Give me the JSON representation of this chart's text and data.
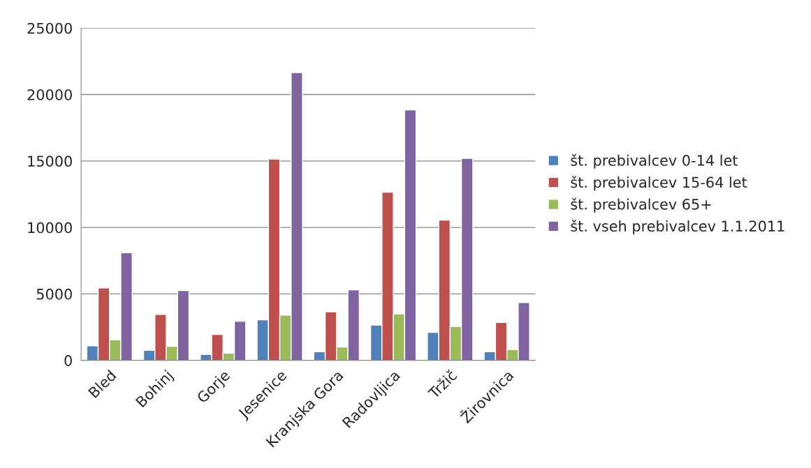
{
  "chart_data": {
    "type": "bar",
    "categories": [
      "Bled",
      "Bohinj",
      "Gorje",
      "Jesenice",
      "Kranjska Gora",
      "Radovljica",
      "Tržič",
      "Žirovnica"
    ],
    "series": [
      {
        "name": "št. prebivalcev 0-14 let",
        "color": "#4f81bd",
        "values": [
          1100,
          750,
          450,
          3050,
          650,
          2650,
          2100,
          650
        ]
      },
      {
        "name": "št. prebivalcev 15-64 let",
        "color": "#c0504d",
        "values": [
          5450,
          3450,
          1950,
          15150,
          3650,
          12650,
          10550,
          2850
        ]
      },
      {
        "name": "št. prebivalcev 65+",
        "color": "#9bbb59",
        "values": [
          1550,
          1050,
          550,
          3400,
          1000,
          3500,
          2550,
          800
        ]
      },
      {
        "name": "št. vseh prebivalcev 1.1.2011",
        "color": "#8064a2",
        "values": [
          8100,
          5250,
          2950,
          21650,
          5300,
          18850,
          15200,
          4350
        ]
      }
    ],
    "ylim": [
      0,
      25000
    ],
    "yticks": [
      0,
      5000,
      10000,
      15000,
      20000,
      25000
    ],
    "grid": "y",
    "legend": "right"
  }
}
